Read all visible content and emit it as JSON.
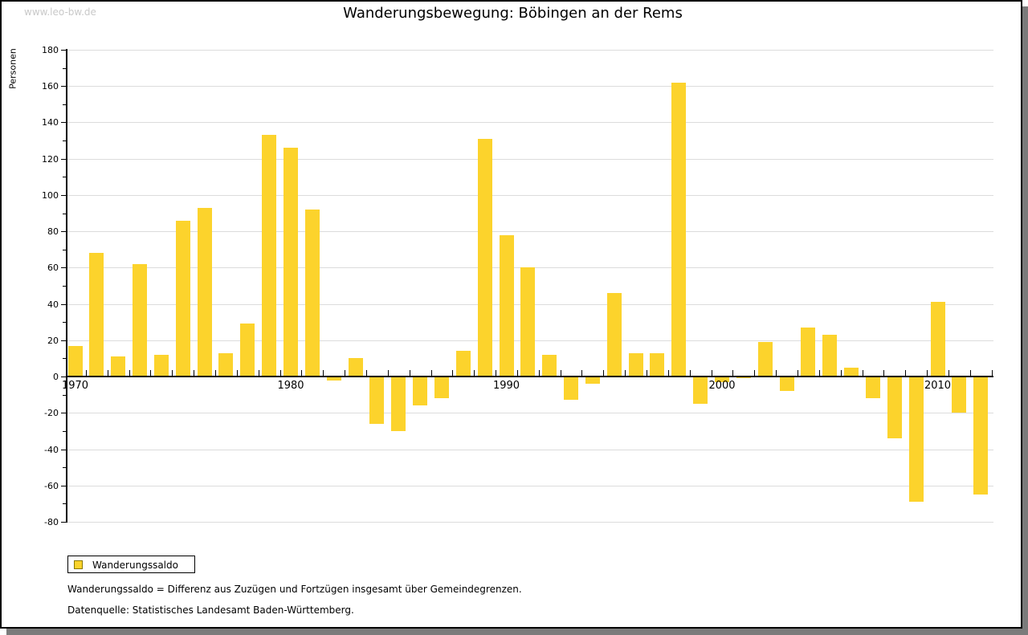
{
  "watermark": "www.leo-bw.de",
  "header": {
    "title": "Wanderungsbewegung: Böbingen an der Rems"
  },
  "legend": {
    "label": "Wanderungssaldo"
  },
  "footnotes": [
    "Wanderungssaldo = Differenz aus Zuzügen und Fortzügen insgesamt über Gemeindegrenzen.",
    "Datenquelle: Statistisches Landesamt Baden-Württemberg."
  ],
  "colors": {
    "bar": "#fcd32c",
    "legend_swatch_border": "#8a7800",
    "grid": "#dcdcdc",
    "axis": "#000000",
    "watermark": "#c9c9c9",
    "shadow": "#7b7b7b"
  },
  "chart_data": {
    "type": "bar",
    "title": "Wanderungsbewegung: Böbingen an der Rems",
    "xlabel": "",
    "ylabel": "Personen",
    "ylim": [
      -80,
      180
    ],
    "ytick_step": 20,
    "ytick_minor_step": 10,
    "grid": true,
    "legend_position": "bottom-left",
    "categories": [
      1970,
      1971,
      1972,
      1973,
      1974,
      1975,
      1976,
      1977,
      1978,
      1979,
      1980,
      1981,
      1982,
      1983,
      1984,
      1985,
      1986,
      1987,
      1988,
      1989,
      1990,
      1991,
      1992,
      1993,
      1994,
      1995,
      1996,
      1997,
      1998,
      1999,
      2000,
      2001,
      2002,
      2003,
      2004,
      2005,
      2006,
      2007,
      2008,
      2009,
      2010,
      2011,
      2012
    ],
    "xtick_labels": [
      1970,
      1980,
      1990,
      2000,
      2010
    ],
    "series": [
      {
        "name": "Wanderungssaldo",
        "values": [
          17,
          68,
          11,
          62,
          12,
          86,
          93,
          13,
          29,
          133,
          126,
          92,
          -2,
          10,
          -26,
          -30,
          -16,
          -12,
          14,
          131,
          78,
          60,
          12,
          -13,
          -4,
          46,
          13,
          13,
          162,
          -15,
          -3,
          -1,
          19,
          -8,
          27,
          23,
          5,
          -12,
          -34,
          -69,
          41,
          -20,
          -65
        ]
      }
    ]
  }
}
